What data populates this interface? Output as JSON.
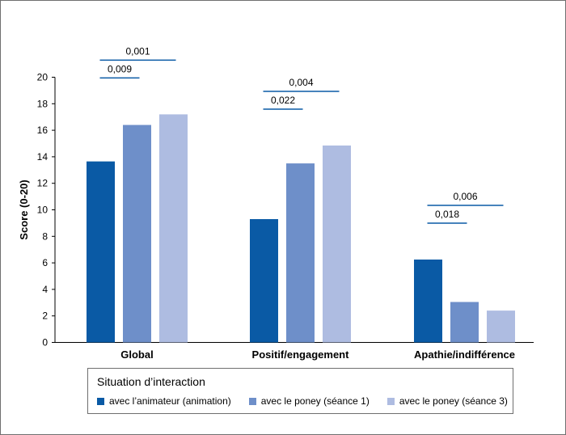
{
  "chart_data": {
    "type": "bar",
    "categories": [
      "Global",
      "Positif/engagement",
      "Apathie/indifférence"
    ],
    "series": [
      {
        "name": "avec l’animateur (animation)",
        "color": "#0a5aa5",
        "values": [
          13.65,
          9.3,
          6.25
        ]
      },
      {
        "name": "avec le poney (séance 1)",
        "color": "#6e8fc9",
        "values": [
          16.4,
          13.5,
          3.05
        ]
      },
      {
        "name": "avec le poney (séance 3)",
        "color": "#aebce1",
        "values": [
          17.2,
          14.85,
          2.4
        ]
      }
    ],
    "ylabel": "Score (0-20)",
    "ylim": [
      0,
      20
    ],
    "yticks": [
      0,
      2,
      4,
      6,
      8,
      10,
      12,
      14,
      16,
      18,
      20
    ],
    "grid": false,
    "significance": [
      {
        "category": 0,
        "from_series": 0,
        "to_series": 2,
        "label": "0,001",
        "level": 2
      },
      {
        "category": 0,
        "from_series": 0,
        "to_series": 1,
        "label": "0,009",
        "level": 1
      },
      {
        "category": 1,
        "from_series": 0,
        "to_series": 2,
        "label": "0,004",
        "level": 2
      },
      {
        "category": 1,
        "from_series": 0,
        "to_series": 1,
        "label": "0,022",
        "level": 1
      },
      {
        "category": 2,
        "from_series": 0,
        "to_series": 2,
        "label": "0,006",
        "level": 2
      },
      {
        "category": 2,
        "from_series": 0,
        "to_series": 1,
        "label": "0,018",
        "level": 1
      }
    ],
    "legend": {
      "title": "Situation d’interaction",
      "position": "bottom"
    }
  }
}
